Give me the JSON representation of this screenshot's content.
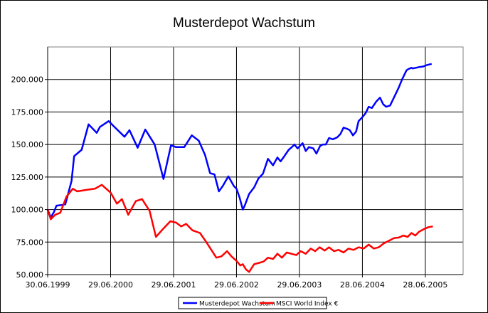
{
  "chart_data": {
    "type": "line",
    "title": "Musterdepot Wachstum",
    "xlabel": "",
    "ylabel": "",
    "x_tick_labels": [
      "30.06.1999",
      "29.06.2000",
      "29.06.2001",
      "29.06.2002",
      "29.06.2003",
      "28.06.2004",
      "28.06.2005"
    ],
    "y_tick_labels": [
      "50.000",
      "75.000",
      "100.000",
      "125.000",
      "150.000",
      "175.000",
      "200.000"
    ],
    "y_ticks": [
      50000,
      75000,
      100000,
      125000,
      150000,
      175000,
      200000
    ],
    "ylim": [
      50000,
      225000
    ],
    "x_range_years": [
      1999.5,
      2006.1
    ],
    "x_tick_years": [
      1999.5,
      2000.5,
      2001.5,
      2002.5,
      2003.5,
      2004.5,
      2005.5
    ],
    "grid": true,
    "legend_position": "bottom-center",
    "series": [
      {
        "name": "Musterdepot Wachstum",
        "color": "#0000ff",
        "x": [
          1999.5,
          1999.55,
          1999.6,
          1999.64,
          1999.72,
          1999.78,
          1999.88,
          1999.92,
          2000.04,
          2000.15,
          2000.28,
          2000.33,
          2000.47,
          2000.55,
          2000.72,
          2000.8,
          2000.93,
          2001.05,
          2001.2,
          2001.34,
          2001.46,
          2001.54,
          2001.67,
          2001.79,
          2001.9,
          2002.0,
          2002.08,
          2002.15,
          2002.22,
          2002.28,
          2002.37,
          2002.46,
          2002.5,
          2002.55,
          2002.6,
          2002.63,
          2002.7,
          2002.78,
          2002.85,
          2002.92,
          2003.0,
          2003.08,
          2003.15,
          2003.2,
          2003.26,
          2003.33,
          2003.38,
          2003.42,
          2003.47,
          2003.55,
          2003.6,
          2003.65,
          2003.72,
          2003.77,
          2003.83,
          2003.87,
          2003.92,
          2003.97,
          2004.03,
          2004.1,
          2004.15,
          2004.2,
          2004.26,
          2004.3,
          2004.35,
          2004.4,
          2004.44,
          2004.5,
          2004.55,
          2004.6,
          2004.65,
          2004.72,
          2004.78,
          2004.83,
          2004.88,
          2004.94,
          2005.0,
          2005.05,
          2005.08,
          2005.13,
          2005.2,
          2005.23,
          2005.28,
          2005.3,
          2005.35,
          2005.4,
          2005.47,
          2005.52,
          2005.56,
          2005.6,
          2005.65,
          2005.72,
          2005.75,
          2005.8,
          2005.85,
          2005.9,
          2005.95,
          2006.0,
          2006.06
        ],
        "values": [
          100000,
          94000,
          98000,
          103000,
          103500,
          104000,
          122000,
          141000,
          146000,
          165500,
          159000,
          163500,
          168000,
          164000,
          156000,
          161000,
          147500,
          161500,
          150000,
          123500,
          149500,
          148000,
          148000,
          157000,
          153000,
          142000,
          128000,
          127000,
          114000,
          118000,
          125500,
          118000,
          116000,
          109000,
          100000,
          103000,
          112000,
          117000,
          124000,
          127500,
          139000,
          134000,
          140000,
          137000,
          141000,
          146000,
          148000,
          150000,
          147000,
          151000,
          145000,
          148000,
          147000,
          143000,
          149000,
          150000,
          150000,
          155000,
          154000,
          155500,
          158000,
          163000,
          162000,
          161000,
          157000,
          160000,
          168000,
          171000,
          174000,
          179000,
          178000,
          183000,
          186000,
          181000,
          179000,
          180000,
          186000,
          191000,
          194000,
          200000,
          207000,
          208000,
          209000,
          208500,
          209000,
          209500,
          210000,
          211000,
          211500,
          212000,
          212500,
          213000,
          213500,
          214000,
          214500,
          215000,
          215500,
          216000,
          216500
        ],
        "visible_end_year": 2005.62
      },
      {
        "name": "MSCI World Index €",
        "color": "#ff0000",
        "x": [
          1999.5,
          1999.55,
          1999.62,
          1999.7,
          1999.8,
          1999.9,
          1999.97,
          2000.1,
          2000.25,
          2000.36,
          2000.5,
          2000.6,
          2000.68,
          2000.78,
          2000.9,
          2001.0,
          2001.12,
          2001.22,
          2001.35,
          2001.45,
          2001.54,
          2001.62,
          2001.7,
          2001.8,
          2001.92,
          2002.02,
          2002.1,
          2002.18,
          2002.26,
          2002.35,
          2002.42,
          2002.5,
          2002.56,
          2002.6,
          2002.65,
          2002.7,
          2002.78,
          2002.86,
          2002.93,
          2003.0,
          2003.08,
          2003.15,
          2003.22,
          2003.3,
          2003.37,
          2003.45,
          2003.52,
          2003.6,
          2003.68,
          2003.75,
          2003.82,
          2003.9,
          2003.97,
          2004.05,
          2004.12,
          2004.2,
          2004.28,
          2004.36,
          2004.44,
          2004.52,
          2004.6,
          2004.68,
          2004.76,
          2004.84,
          2004.92,
          2005.0,
          2005.08,
          2005.15,
          2005.22,
          2005.28,
          2005.34,
          2005.4,
          2005.48,
          2005.55,
          2005.62
        ],
        "values": [
          100000,
          92500,
          96000,
          97500,
          110000,
          116000,
          114000,
          115000,
          116000,
          119000,
          113000,
          104500,
          108000,
          96000,
          106500,
          108000,
          99000,
          79000,
          86000,
          91000,
          90000,
          87000,
          89000,
          84000,
          82000,
          75000,
          69000,
          63000,
          64000,
          68000,
          64000,
          60500,
          57000,
          58000,
          54000,
          52000,
          58000,
          59000,
          60000,
          63000,
          62000,
          66000,
          63000,
          67000,
          66000,
          65000,
          68000,
          66000,
          70000,
          68000,
          71000,
          68500,
          71000,
          68000,
          69000,
          67000,
          70000,
          69000,
          71000,
          70000,
          73000,
          70000,
          71000,
          74000,
          76000,
          78000,
          78500,
          80000,
          79000,
          82000,
          80000,
          83000,
          85000,
          86500,
          87000
        ],
        "visible_end_year": 2005.62
      }
    ]
  }
}
